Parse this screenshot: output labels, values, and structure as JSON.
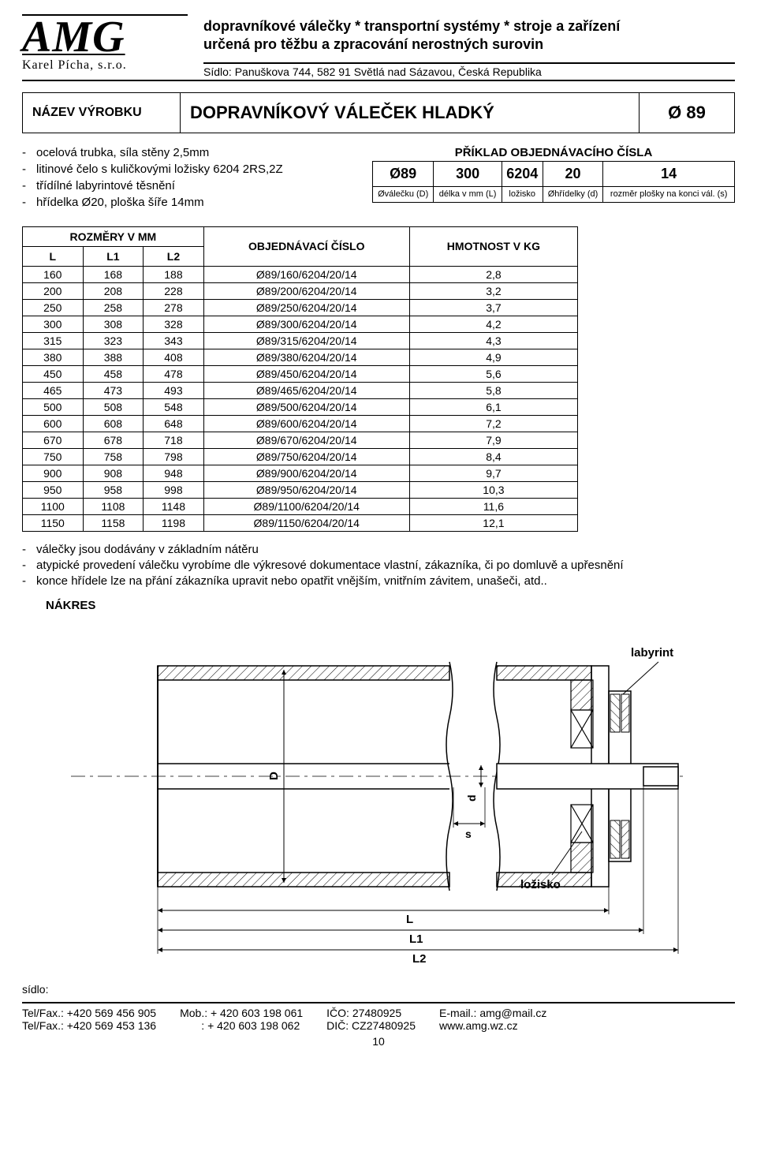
{
  "logo": {
    "brand": "AMG",
    "company": "Karel Pícha, s.r.o."
  },
  "tagline1": "dopravníkové válečky * transportní systémy * stroje a zařízení",
  "tagline2": "určená pro těžbu a zpracování nerostných surovin",
  "seat": "Sídlo: Panuškova 744, 582 91 Světlá nad Sázavou, Česká Republika",
  "title_block": {
    "label": "NÁZEV VÝROBKU",
    "name": "DOPRAVNÍKOVÝ VÁLEČEK HLADKÝ",
    "diameter": "Ø 89"
  },
  "specs": [
    "ocelová trubka, síla stěny 2,5mm",
    "litinové čelo s kuličkovými ložisky 6204 2RS,2Z",
    "třídílné labyrintové těsnění",
    "hřídelka Ø20, ploška šíře 14mm"
  ],
  "example": {
    "title": "PŘÍKLAD OBJEDNÁVACÍHO ČÍSLA",
    "big": [
      "Ø89",
      "300",
      "6204",
      "20",
      "14"
    ],
    "small": [
      "Øválečku (D)",
      "délka v mm (L)",
      "ložisko",
      "Øhřídelky (d)",
      "rozměr plošky na konci vál. (s)"
    ]
  },
  "table": {
    "group_head": "ROZMĚRY V MM",
    "subheads": [
      "L",
      "L1",
      "L2"
    ],
    "col_obj": "OBJEDNÁVACÍ ČÍSLO",
    "col_wt": "HMOTNOST V KG",
    "rows": [
      [
        "160",
        "168",
        "188",
        "Ø89/160/6204/20/14",
        "2,8"
      ],
      [
        "200",
        "208",
        "228",
        "Ø89/200/6204/20/14",
        "3,2"
      ],
      [
        "250",
        "258",
        "278",
        "Ø89/250/6204/20/14",
        "3,7"
      ],
      [
        "300",
        "308",
        "328",
        "Ø89/300/6204/20/14",
        "4,2"
      ],
      [
        "315",
        "323",
        "343",
        "Ø89/315/6204/20/14",
        "4,3"
      ],
      [
        "380",
        "388",
        "408",
        "Ø89/380/6204/20/14",
        "4,9"
      ],
      [
        "450",
        "458",
        "478",
        "Ø89/450/6204/20/14",
        "5,6"
      ],
      [
        "465",
        "473",
        "493",
        "Ø89/465/6204/20/14",
        "5,8"
      ],
      [
        "500",
        "508",
        "548",
        "Ø89/500/6204/20/14",
        "6,1"
      ],
      [
        "600",
        "608",
        "648",
        "Ø89/600/6204/20/14",
        "7,2"
      ],
      [
        "670",
        "678",
        "718",
        "Ø89/670/6204/20/14",
        "7,9"
      ],
      [
        "750",
        "758",
        "798",
        "Ø89/750/6204/20/14",
        "8,4"
      ],
      [
        "900",
        "908",
        "948",
        "Ø89/900/6204/20/14",
        "9,7"
      ],
      [
        "950",
        "958",
        "998",
        "Ø89/950/6204/20/14",
        "10,3"
      ],
      [
        "1100",
        "1108",
        "1148",
        "Ø89/1100/6204/20/14",
        "11,6"
      ],
      [
        "1150",
        "1158",
        "1198",
        "Ø89/1150/6204/20/14",
        "12,1"
      ]
    ]
  },
  "notes": [
    "válečky jsou dodávány v základním nátěru",
    "atypické provedení válečku vyrobíme dle výkresové dokumentace vlastní, zákazníka, či po domluvě a upřesnění",
    "konce hřídele lze na přání zákazníka upravit nebo opatřit vnějším, vnitřním závitem, unašeči, atd.."
  ],
  "nakres_label": "NÁKRES",
  "drawing_labels": {
    "labyrint": "labyrint",
    "lozisko": "ložisko",
    "D": "D",
    "d": "d",
    "s": "s",
    "L": "L",
    "L1": "L1",
    "L2": "L2"
  },
  "footer": {
    "sidlo": "sídlo:",
    "tel1": "Tel/Fax.: +420 569 456 905",
    "tel2": "Tel/Fax.: +420 569 453 136",
    "mob1": "Mob.: + 420 603 198 061",
    "mob2": "       : + 420 603 198 062",
    "ico": "IČO: 27480925",
    "dic": "DIČ: CZ27480925",
    "email": "E-mail.: amg@mail.cz",
    "web": "www.amg.wz.cz"
  },
  "page_number": "10",
  "colors": {
    "draw_stroke": "#000000",
    "hatch": "#000000",
    "blue_dim": "#0a3a9a",
    "dim_line": "#000000"
  }
}
